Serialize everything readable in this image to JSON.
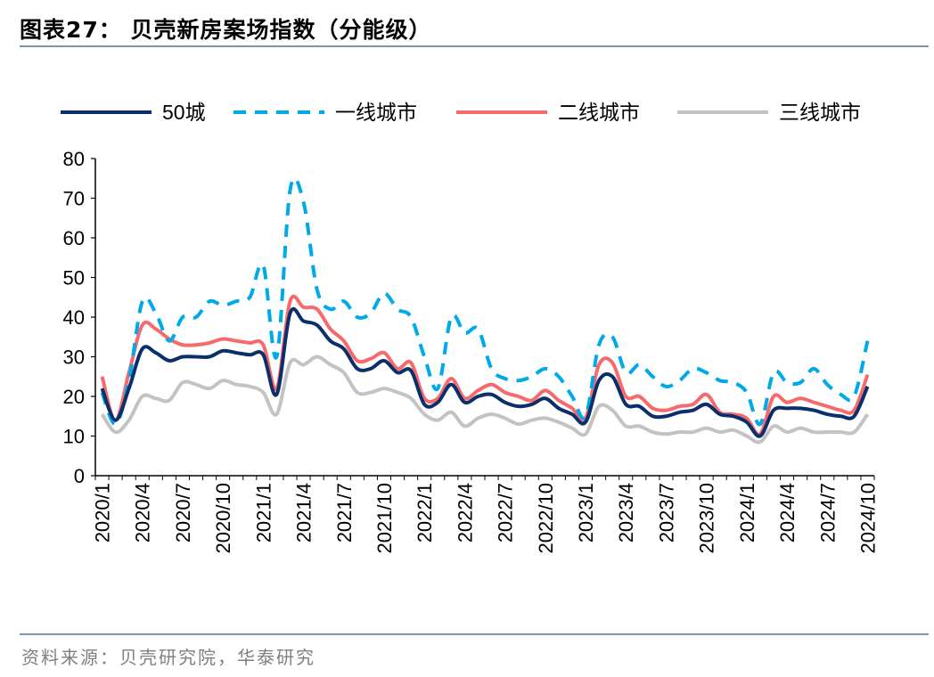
{
  "title": "图表27：  贝壳新房案场指数（分能级）",
  "source": "资料来源：贝壳研究院，华泰研究",
  "chart_data": {
    "type": "line",
    "title": "",
    "xlabel": "",
    "ylabel": "",
    "ylim": [
      0,
      80
    ],
    "yticks": [
      0,
      10,
      20,
      30,
      40,
      50,
      60,
      70,
      80
    ],
    "grid": false,
    "legend_position": "top",
    "x": [
      "2020/1",
      "2020/2",
      "2020/3",
      "2020/4",
      "2020/5",
      "2020/6",
      "2020/7",
      "2020/8",
      "2020/9",
      "2020/10",
      "2020/11",
      "2020/12",
      "2021/1",
      "2021/2",
      "2021/3",
      "2021/4",
      "2021/5",
      "2021/6",
      "2021/7",
      "2021/8",
      "2021/9",
      "2021/10",
      "2021/11",
      "2021/12",
      "2022/1",
      "2022/2",
      "2022/3",
      "2022/4",
      "2022/5",
      "2022/6",
      "2022/7",
      "2022/8",
      "2022/9",
      "2022/10",
      "2022/11",
      "2022/12",
      "2023/1",
      "2023/2",
      "2023/3",
      "2023/4",
      "2023/5",
      "2023/6",
      "2023/7",
      "2023/8",
      "2023/9",
      "2023/10",
      "2023/11",
      "2023/12",
      "2024/1",
      "2024/2",
      "2024/3",
      "2024/4",
      "2024/5",
      "2024/6",
      "2024/7",
      "2024/8",
      "2024/9",
      "2024/10"
    ],
    "xtick_labels": [
      "2020/1",
      "2020/4",
      "2020/7",
      "2020/10",
      "2021/1",
      "2021/4",
      "2021/7",
      "2021/10",
      "2022/1",
      "2022/4",
      "2022/7",
      "2022/10",
      "2023/1",
      "2023/4",
      "2023/7",
      "2023/10",
      "2024/1",
      "2024/4",
      "2024/7",
      "2024/10"
    ],
    "series": [
      {
        "name": "50城",
        "color": "#0b2f6b",
        "dash": false,
        "values": [
          22,
          14,
          22,
          32,
          31,
          29,
          30,
          30,
          30,
          31.5,
          31,
          30.5,
          30.5,
          20.5,
          41,
          39,
          38,
          34,
          32,
          27,
          27,
          29,
          26,
          26.5,
          18,
          18.5,
          23,
          18.5,
          20,
          20.5,
          18.5,
          17.5,
          18,
          19.5,
          17,
          15.5,
          13.5,
          24,
          25,
          18,
          17.5,
          15,
          15,
          16,
          16.5,
          18,
          15.5,
          15,
          13.5,
          10,
          16.5,
          17,
          17,
          16.5,
          15.5,
          15,
          15,
          22.5
        ]
      },
      {
        "name": "一线城市",
        "color": "#00a9e8",
        "dash": true,
        "values": [
          21,
          13,
          24,
          44,
          41,
          34,
          40,
          40,
          44,
          43,
          44,
          45,
          53,
          30,
          72,
          69,
          47,
          42,
          44,
          40,
          41,
          46,
          42,
          40,
          30,
          22,
          40,
          36,
          37,
          27,
          24.5,
          24,
          25,
          27,
          25,
          20,
          15,
          33,
          35,
          26,
          28,
          25,
          22.5,
          24,
          27,
          26,
          24,
          23.5,
          21,
          13,
          26,
          23.5,
          23.5,
          27,
          23,
          20.5,
          20,
          34
        ]
      },
      {
        "name": "二线城市",
        "color": "#f76a6c",
        "dash": false,
        "values": [
          25,
          14,
          26,
          38,
          37,
          34.5,
          33,
          33,
          33.5,
          34.5,
          34,
          33.5,
          33,
          22,
          44,
          42.5,
          42,
          37,
          34,
          29,
          29.5,
          31,
          27,
          28.5,
          19.5,
          19.5,
          24.5,
          19.5,
          21.5,
          23,
          21,
          20,
          19,
          21.5,
          19,
          17,
          14.5,
          28,
          28.5,
          20,
          20,
          17,
          16.5,
          17.5,
          18,
          20.5,
          16,
          15.5,
          14.5,
          10.5,
          20,
          18.5,
          19.5,
          18.5,
          17.5,
          16.5,
          16.5,
          25.5
        ]
      },
      {
        "name": "三线城市",
        "color": "#c3c3c3",
        "dash": false,
        "values": [
          15.5,
          11,
          14,
          20,
          19.5,
          19,
          23.5,
          23,
          22,
          24,
          23,
          22.5,
          21,
          15.5,
          28.5,
          28,
          30,
          28,
          26,
          21,
          21,
          22,
          21,
          19.5,
          15.5,
          14,
          16,
          12.5,
          14.5,
          15.5,
          14.5,
          13,
          14,
          14.5,
          13.5,
          12,
          10.5,
          17.5,
          16.5,
          12.5,
          12.5,
          11,
          10.5,
          11,
          11,
          12,
          11,
          11.5,
          10,
          8.5,
          12.5,
          11,
          12,
          11,
          11,
          11,
          11,
          15.5
        ]
      }
    ]
  }
}
